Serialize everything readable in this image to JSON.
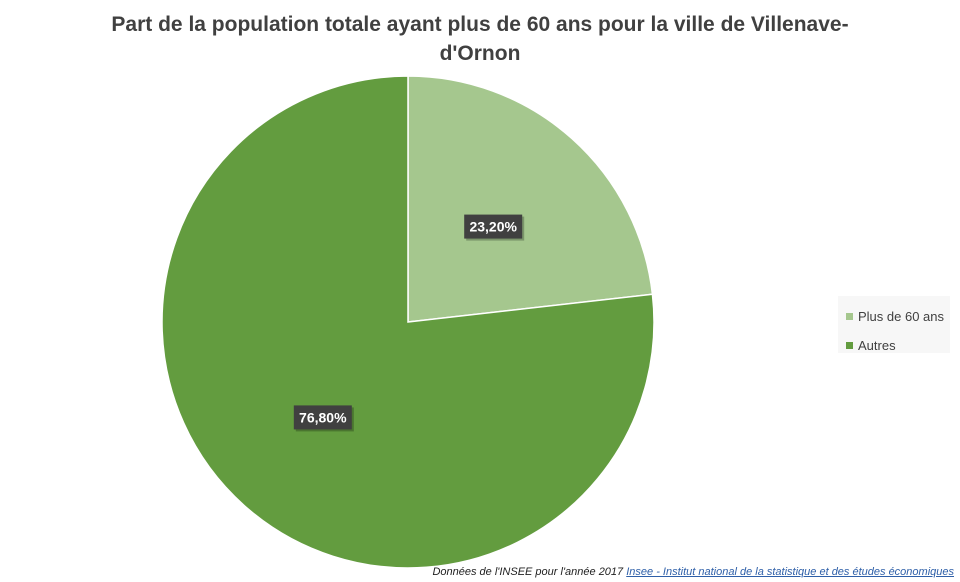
{
  "colors": {
    "slice_1": "#a5c78e",
    "slice_2": "#639c3f",
    "label_bg": "#404040",
    "label_text": "#ffffff"
  },
  "chart_data": {
    "type": "pie",
    "title": "Part de la population totale ayant plus de 60 ans pour la ville de Villenave-d'Ornon",
    "categories": [
      "Plus de 60 ans",
      "Autres"
    ],
    "values": [
      23.2,
      76.8
    ],
    "data_labels": [
      "23,20%",
      "76,80%"
    ],
    "legend_position": "right"
  },
  "footer": {
    "source_text": "Données de l'INSEE pour l'année 2017",
    "link_text": "Insee - Institut national de la statistique et des études économiques"
  }
}
